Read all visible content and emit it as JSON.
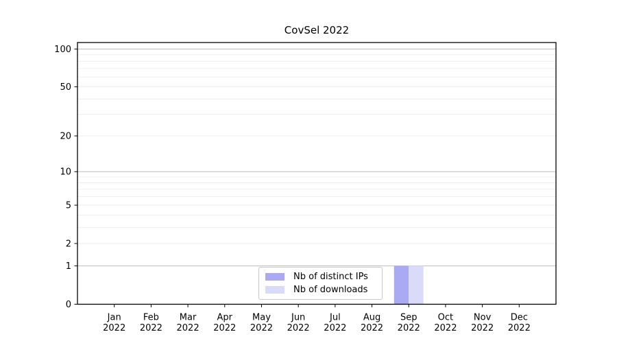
{
  "chart_data": {
    "type": "bar",
    "title": "CovSel 2022",
    "categories": [
      {
        "label": "Jan",
        "sub": "2022"
      },
      {
        "label": "Feb",
        "sub": "2022"
      },
      {
        "label": "Mar",
        "sub": "2022"
      },
      {
        "label": "Apr",
        "sub": "2022"
      },
      {
        "label": "May",
        "sub": "2022"
      },
      {
        "label": "Jun",
        "sub": "2022"
      },
      {
        "label": "Jul",
        "sub": "2022"
      },
      {
        "label": "Aug",
        "sub": "2022"
      },
      {
        "label": "Sep",
        "sub": "2022"
      },
      {
        "label": "Oct",
        "sub": "2022"
      },
      {
        "label": "Nov",
        "sub": "2022"
      },
      {
        "label": "Dec",
        "sub": "2022"
      }
    ],
    "series": [
      {
        "name": "Nb of distinct IPs",
        "color": "#a9a9f4",
        "values": [
          0,
          0,
          0,
          0,
          0,
          0,
          0,
          0,
          1,
          0,
          0,
          0
        ]
      },
      {
        "name": "Nb of downloads",
        "color": "#dadaf9",
        "values": [
          0,
          0,
          0,
          0,
          0,
          0,
          0,
          0,
          1,
          0,
          0,
          0
        ]
      }
    ],
    "yscale": "log1p",
    "ylim": [
      0,
      112
    ],
    "yticks": [
      0,
      1,
      2,
      5,
      10,
      20,
      50,
      100
    ],
    "grid": {
      "major_lines": [
        1,
        10,
        100
      ],
      "minor_lines": [
        2,
        3,
        4,
        5,
        6,
        7,
        8,
        9,
        20,
        30,
        40,
        50,
        60,
        70,
        80,
        90
      ],
      "major_color": "#bbbbbb",
      "minor_color": "#e8e8e8"
    },
    "legend_position": "lower center",
    "axis_color": "#000000",
    "background_color": "#ffffff"
  }
}
